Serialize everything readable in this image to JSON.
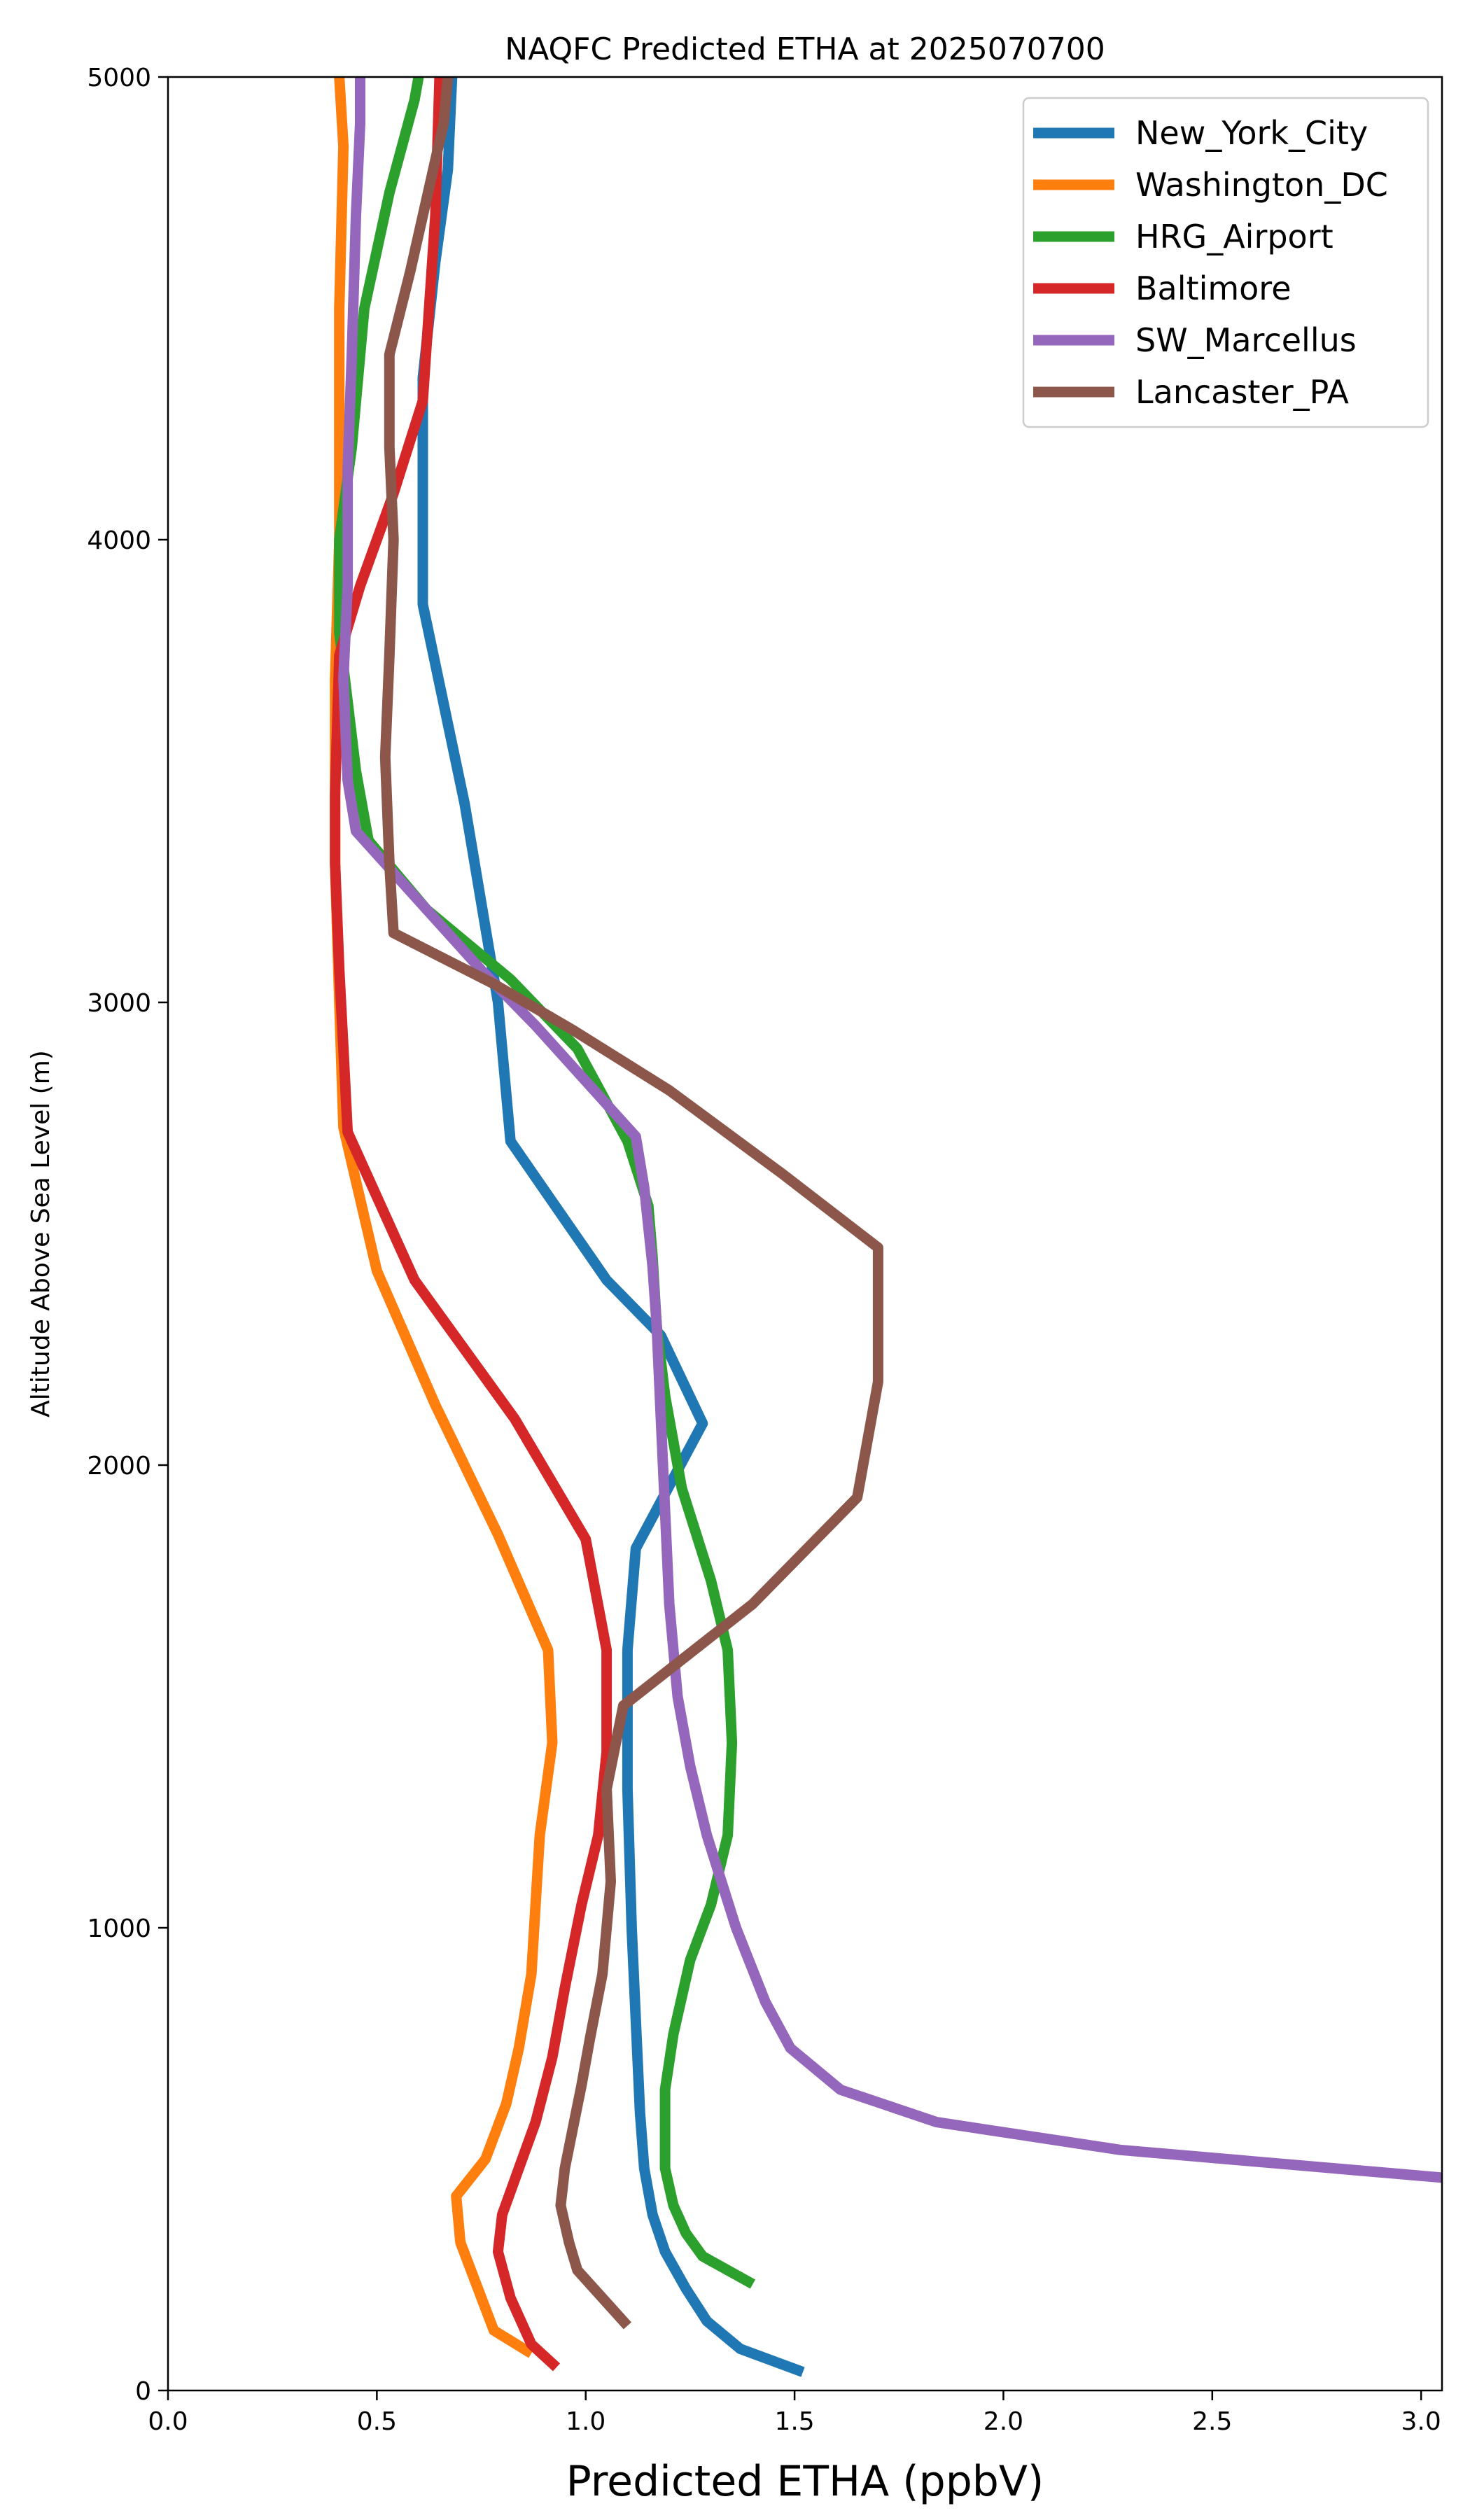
{
  "chart_data": {
    "type": "line",
    "title": "NAQFC Predicted ETHA at 2025070700",
    "xlabel": "Predicted ETHA (ppbV)",
    "ylabel": "Altitude Above Sea Level (m)",
    "xlim": [
      0.0,
      3.05
    ],
    "ylim": [
      0,
      5000
    ],
    "xticks": [
      "0.0",
      "0.5",
      "1.0",
      "1.5",
      "2.0",
      "2.5",
      "3.0"
    ],
    "xtick_values": [
      0,
      0.5,
      1.0,
      1.5,
      2.0,
      2.5,
      3.0
    ],
    "yticks": [
      "0",
      "1000",
      "2000",
      "3000",
      "4000",
      "5000"
    ],
    "ytick_values": [
      0,
      1000,
      2000,
      3000,
      4000,
      5000
    ],
    "grid": false,
    "legend_position": "top-right",
    "series": [
      {
        "name": "New_York_City",
        "color": "#1f77b4",
        "points": [
          [
            1.52,
            40
          ],
          [
            1.37,
            90
          ],
          [
            1.29,
            150
          ],
          [
            1.24,
            220
          ],
          [
            1.19,
            300
          ],
          [
            1.16,
            380
          ],
          [
            1.14,
            480
          ],
          [
            1.13,
            600
          ],
          [
            1.12,
            800
          ],
          [
            1.11,
            1000
          ],
          [
            1.1,
            1300
          ],
          [
            1.1,
            1600
          ],
          [
            1.12,
            1820
          ],
          [
            1.28,
            2090
          ],
          [
            1.18,
            2280
          ],
          [
            1.05,
            2400
          ],
          [
            0.82,
            2700
          ],
          [
            0.79,
            3000
          ],
          [
            0.71,
            3430
          ],
          [
            0.61,
            3860
          ],
          [
            0.61,
            4000
          ],
          [
            0.61,
            4350
          ],
          [
            0.64,
            4600
          ],
          [
            0.67,
            4800
          ],
          [
            0.68,
            5000
          ]
        ]
      },
      {
        "name": "Washington_DC",
        "color": "#ff7f0e",
        "points": [
          [
            0.87,
            80
          ],
          [
            0.78,
            130
          ],
          [
            0.7,
            320
          ],
          [
            0.69,
            420
          ],
          [
            0.76,
            500
          ],
          [
            0.81,
            620
          ],
          [
            0.84,
            740
          ],
          [
            0.87,
            900
          ],
          [
            0.89,
            1200
          ],
          [
            0.92,
            1400
          ],
          [
            0.91,
            1600
          ],
          [
            0.79,
            1850
          ],
          [
            0.64,
            2130
          ],
          [
            0.5,
            2420
          ],
          [
            0.42,
            2730
          ],
          [
            0.41,
            3000
          ],
          [
            0.4,
            3300
          ],
          [
            0.4,
            3700
          ],
          [
            0.41,
            4000
          ],
          [
            0.41,
            4500
          ],
          [
            0.42,
            4850
          ],
          [
            0.41,
            5000
          ]
        ]
      },
      {
        "name": "HRG_Airport",
        "color": "#2ca02c",
        "points": [
          [
            1.4,
            230
          ],
          [
            1.28,
            290
          ],
          [
            1.24,
            340
          ],
          [
            1.21,
            400
          ],
          [
            1.19,
            480
          ],
          [
            1.19,
            560
          ],
          [
            1.19,
            650
          ],
          [
            1.21,
            770
          ],
          [
            1.25,
            930
          ],
          [
            1.3,
            1050
          ],
          [
            1.34,
            1200
          ],
          [
            1.35,
            1400
          ],
          [
            1.34,
            1600
          ],
          [
            1.3,
            1750
          ],
          [
            1.23,
            1950
          ],
          [
            1.19,
            2150
          ],
          [
            1.17,
            2300
          ],
          [
            1.16,
            2450
          ],
          [
            1.15,
            2560
          ],
          [
            1.1,
            2700
          ],
          [
            0.98,
            2900
          ],
          [
            0.82,
            3050
          ],
          [
            0.62,
            3200
          ],
          [
            0.48,
            3350
          ],
          [
            0.45,
            3500
          ],
          [
            0.41,
            3800
          ],
          [
            0.41,
            4000
          ],
          [
            0.44,
            4200
          ],
          [
            0.47,
            4500
          ],
          [
            0.53,
            4750
          ],
          [
            0.59,
            4950
          ],
          [
            0.6,
            5000
          ]
        ]
      },
      {
        "name": "Baltimore",
        "color": "#d62728",
        "points": [
          [
            0.93,
            50
          ],
          [
            0.87,
            100
          ],
          [
            0.82,
            200
          ],
          [
            0.79,
            300
          ],
          [
            0.8,
            380
          ],
          [
            0.84,
            480
          ],
          [
            0.88,
            580
          ],
          [
            0.92,
            720
          ],
          [
            0.95,
            870
          ],
          [
            0.99,
            1050
          ],
          [
            1.03,
            1200
          ],
          [
            1.05,
            1380
          ],
          [
            1.05,
            1600
          ],
          [
            1.0,
            1840
          ],
          [
            0.83,
            2100
          ],
          [
            0.59,
            2400
          ],
          [
            0.43,
            2720
          ],
          [
            0.42,
            2900
          ],
          [
            0.41,
            3070
          ],
          [
            0.4,
            3300
          ],
          [
            0.4,
            3450
          ],
          [
            0.41,
            3750
          ],
          [
            0.46,
            3900
          ],
          [
            0.54,
            4100
          ],
          [
            0.61,
            4300
          ],
          [
            0.64,
            4700
          ],
          [
            0.65,
            5000
          ]
        ]
      },
      {
        "name": "SW_Marcellus",
        "color": "#9467bd",
        "points": [
          [
            3.05,
            460
          ],
          [
            2.28,
            520
          ],
          [
            1.84,
            580
          ],
          [
            1.61,
            650
          ],
          [
            1.49,
            740
          ],
          [
            1.43,
            840
          ],
          [
            1.36,
            1000
          ],
          [
            1.29,
            1200
          ],
          [
            1.25,
            1350
          ],
          [
            1.22,
            1500
          ],
          [
            1.2,
            1700
          ],
          [
            1.19,
            1900
          ],
          [
            1.18,
            2100
          ],
          [
            1.17,
            2300
          ],
          [
            1.16,
            2430
          ],
          [
            1.14,
            2600
          ],
          [
            1.12,
            2710
          ],
          [
            1.03,
            2800
          ],
          [
            0.88,
            2950
          ],
          [
            0.75,
            3070
          ],
          [
            0.6,
            3220
          ],
          [
            0.45,
            3370
          ],
          [
            0.43,
            3480
          ],
          [
            0.42,
            3700
          ],
          [
            0.43,
            3900
          ],
          [
            0.43,
            4150
          ],
          [
            0.44,
            4400
          ],
          [
            0.45,
            4700
          ],
          [
            0.46,
            4900
          ],
          [
            0.46,
            5000
          ]
        ]
      },
      {
        "name": "Lancaster_PA",
        "color": "#8c564b",
        "points": [
          [
            1.1,
            140
          ],
          [
            1.04,
            200
          ],
          [
            0.98,
            260
          ],
          [
            0.96,
            320
          ],
          [
            0.94,
            400
          ],
          [
            0.95,
            480
          ],
          [
            0.97,
            570
          ],
          [
            0.99,
            660
          ],
          [
            1.01,
            760
          ],
          [
            1.04,
            900
          ],
          [
            1.05,
            1000
          ],
          [
            1.06,
            1100
          ],
          [
            1.05,
            1300
          ],
          [
            1.09,
            1480
          ],
          [
            1.4,
            1700
          ],
          [
            1.65,
            1930
          ],
          [
            1.7,
            2180
          ],
          [
            1.7,
            2470
          ],
          [
            1.47,
            2630
          ],
          [
            1.2,
            2810
          ],
          [
            0.97,
            2940
          ],
          [
            0.78,
            3040
          ],
          [
            0.54,
            3150
          ],
          [
            0.53,
            3300
          ],
          [
            0.52,
            3530
          ],
          [
            0.53,
            3750
          ],
          [
            0.54,
            4000
          ],
          [
            0.53,
            4200
          ],
          [
            0.53,
            4400
          ],
          [
            0.58,
            4580
          ],
          [
            0.63,
            4780
          ],
          [
            0.66,
            4900
          ],
          [
            0.67,
            5000
          ]
        ]
      }
    ]
  }
}
